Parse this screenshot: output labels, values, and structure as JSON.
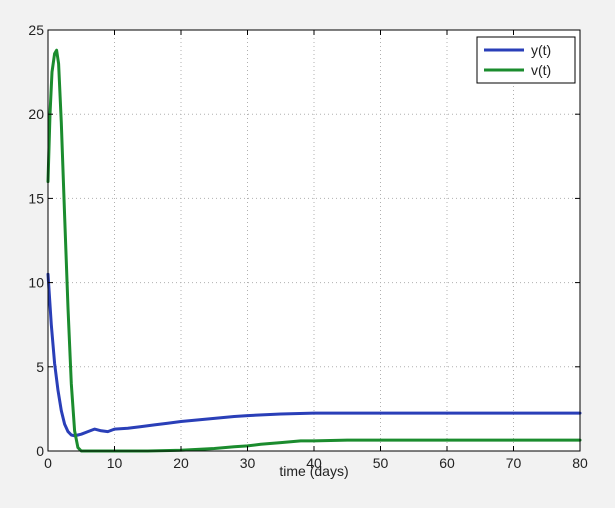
{
  "chart_data": {
    "type": "line",
    "title": "",
    "xlabel": "time (days)",
    "ylabel": "",
    "xlim": [
      0,
      80
    ],
    "ylim": [
      0,
      25
    ],
    "x_ticks": [
      0,
      10,
      20,
      30,
      40,
      50,
      60,
      70,
      80
    ],
    "x_tick_labels": [
      "0",
      "10",
      "20",
      "30",
      "40",
      "50",
      "60",
      "70",
      "80"
    ],
    "y_ticks": [
      0,
      5,
      10,
      15,
      20,
      25
    ],
    "y_tick_labels": [
      "0",
      "5",
      "10",
      "15",
      "20",
      "25"
    ],
    "grid": true,
    "legend_position": "top-right",
    "series": [
      {
        "name": "y(t)",
        "color": "#2a3fb8",
        "x": [
          0,
          0.5,
          1,
          1.5,
          2,
          2.5,
          3,
          3.5,
          4,
          4.5,
          5,
          6,
          7,
          8,
          9,
          10,
          12,
          14,
          16,
          18,
          20,
          24,
          28,
          30,
          35,
          40,
          45,
          50,
          60,
          70,
          80
        ],
        "y": [
          10.5,
          7.5,
          5.2,
          3.6,
          2.4,
          1.6,
          1.15,
          0.95,
          0.9,
          0.95,
          1.0,
          1.15,
          1.3,
          1.2,
          1.15,
          1.3,
          1.35,
          1.45,
          1.55,
          1.65,
          1.75,
          1.9,
          2.05,
          2.1,
          2.2,
          2.25,
          2.25,
          2.25,
          2.25,
          2.25,
          2.25
        ]
      },
      {
        "name": "v(t)",
        "color": "#1b8c2e",
        "x": [
          0,
          0.3,
          0.6,
          1,
          1.3,
          1.6,
          2,
          2.5,
          3,
          3.5,
          4,
          4.5,
          5,
          7,
          10,
          15,
          20,
          25,
          28,
          30,
          32,
          35,
          38,
          40,
          45,
          50,
          60,
          70,
          80
        ],
        "y": [
          16.0,
          20.0,
          22.5,
          23.6,
          23.8,
          23.0,
          19.5,
          14.0,
          8.5,
          4.0,
          1.2,
          0.2,
          0.0,
          0.0,
          0.0,
          0.0,
          0.05,
          0.15,
          0.25,
          0.3,
          0.4,
          0.5,
          0.6,
          0.6,
          0.65,
          0.65,
          0.65,
          0.65,
          0.65
        ]
      }
    ]
  }
}
